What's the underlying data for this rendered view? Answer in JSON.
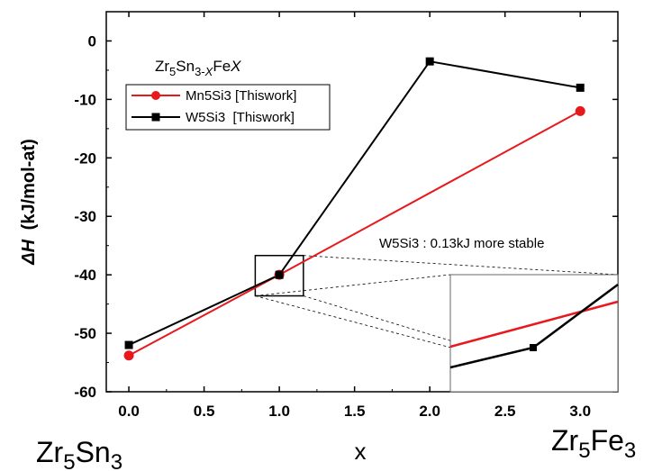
{
  "chart_data": {
    "type": "line",
    "x": [
      0,
      1,
      2,
      3
    ],
    "xlim": [
      -0.15,
      3.25
    ],
    "ylim": [
      -60,
      5
    ],
    "xticks": [
      "0.0",
      "0.5",
      "1.0",
      "1.5",
      "2.0",
      "2.5",
      "3.0"
    ],
    "yticks": [
      "0",
      "-10",
      "-20",
      "-30",
      "-40",
      "-50",
      "-60"
    ],
    "ylabel_symbol": "ΔH",
    "ylabel_unit": "(kJ/mol-at)",
    "xlabel": "x",
    "x_start_label": {
      "base": "Zr",
      "sub1": "5",
      "mid": "Sn",
      "sub2": "3"
    },
    "x_end_label": {
      "base": "Zr",
      "sub1": "5",
      "mid": "Fe",
      "sub2": "3"
    },
    "legend_title": {
      "a": "Zr",
      "a_sub": "5",
      "b": "Sn",
      "b_sub": "3-",
      "c": "X",
      "d": "Fe",
      "e": "X"
    },
    "series": [
      {
        "name": "Mn5Si3 [Thiswork]",
        "color": "#e8191d",
        "marker": "circle",
        "x": [
          0,
          1,
          3
        ],
        "y": [
          -53.8,
          -40,
          -12
        ]
      },
      {
        "name": "W5Si3  [Thiswork]",
        "color": "#000000",
        "marker": "square",
        "x": [
          0,
          1,
          2,
          3
        ],
        "y": [
          -52,
          -40,
          -3.5,
          -8
        ]
      }
    ],
    "annotation": "W5Si3 : 0.13kJ more stable",
    "legend_position": "top-left",
    "grid": false
  }
}
